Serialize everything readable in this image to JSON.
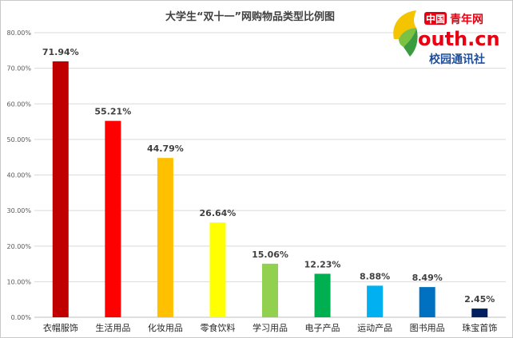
{
  "chart_data": {
    "type": "bar",
    "title": "大学生“双十一”网购物品类型比例图",
    "categories": [
      "衣帽服饰",
      "生活用品",
      "化妆用品",
      "零食饮料",
      "学习用品",
      "电子产品",
      "运动产品",
      "图书用品",
      "珠宝首饰"
    ],
    "values": [
      71.94,
      55.21,
      44.79,
      26.64,
      15.06,
      12.23,
      8.88,
      8.49,
      2.45
    ],
    "data_labels": [
      "71.94%",
      "55.21%",
      "44.79%",
      "26.64%",
      "15.06%",
      "12.23%",
      "8.88%",
      "8.49%",
      "2.45%"
    ],
    "colors": [
      "#c00000",
      "#ff0000",
      "#ffc000",
      "#ffff00",
      "#92d050",
      "#00b050",
      "#00b0f0",
      "#0070c0",
      "#002060"
    ],
    "yticks": [
      "0.00%",
      "10.00%",
      "20.00%",
      "30.00%",
      "40.00%",
      "50.00%",
      "60.00%",
      "70.00%",
      "80.00%"
    ],
    "ylim": [
      0,
      80
    ],
    "xlabel": "",
    "ylabel": "",
    "grid": true
  },
  "logo": {
    "brand_cn": "中国",
    "brand_cn2": "青年网",
    "brand_en": "outh.cn",
    "subtitle": "校园通讯社"
  }
}
